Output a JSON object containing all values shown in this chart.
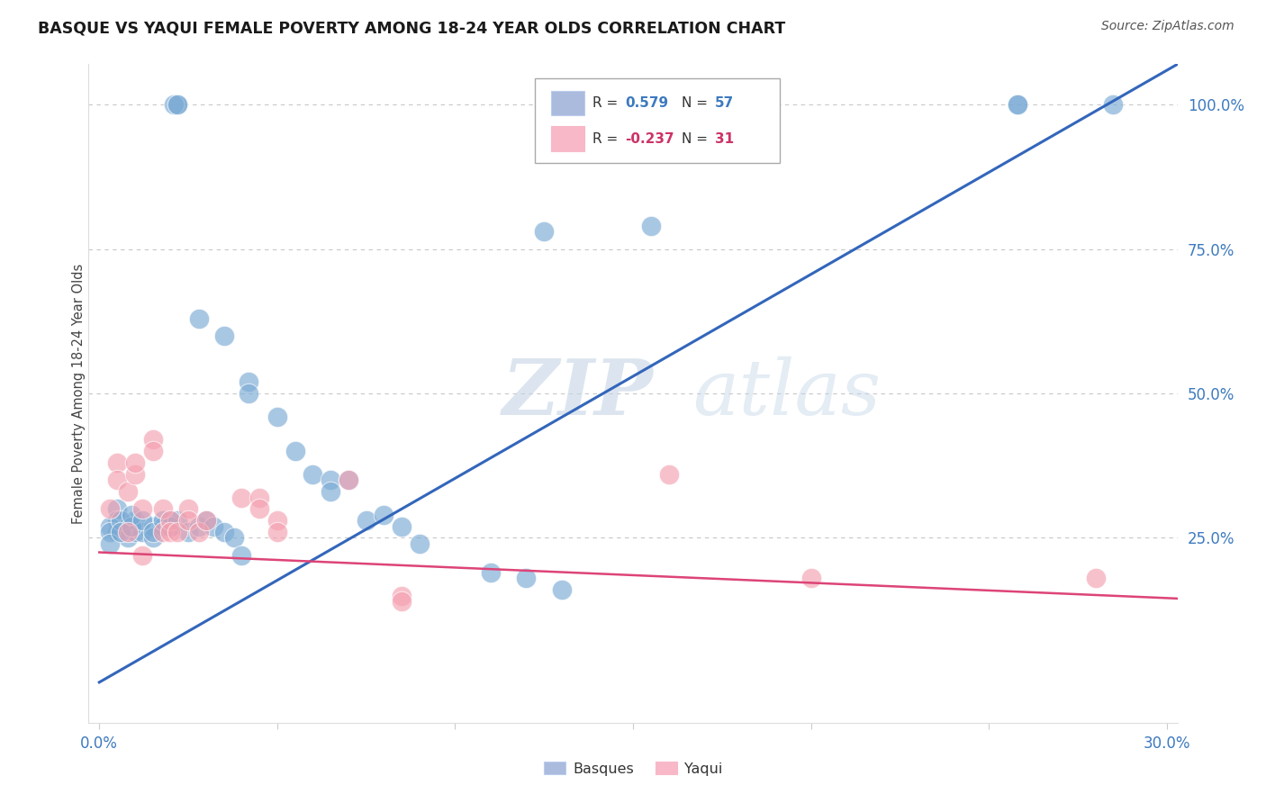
{
  "title": "BASQUE VS YAQUI FEMALE POVERTY AMONG 18-24 YEAR OLDS CORRELATION CHART",
  "source": "Source: ZipAtlas.com",
  "ylabel": "Female Poverty Among 18-24 Year Olds",
  "xlim": [
    -0.003,
    0.303
  ],
  "ylim": [
    -0.07,
    1.07
  ],
  "xtick_vals": [
    0.0,
    0.05,
    0.1,
    0.15,
    0.2,
    0.25,
    0.3
  ],
  "xticklabels": [
    "0.0%",
    "",
    "",
    "",
    "",
    "",
    "30.0%"
  ],
  "ytick_vals": [
    0.25,
    0.5,
    0.75,
    1.0
  ],
  "yticklabels": [
    "25.0%",
    "50.0%",
    "75.0%",
    "100.0%"
  ],
  "blue_scatter_color": "#7aaad4",
  "pink_scatter_color": "#f4a0b0",
  "blue_line_color": "#3366bb",
  "pink_line_color": "#dd4477",
  "tick_label_color": "#3d7abf",
  "grid_color": "#c8c8c8",
  "legend_blue_r": "0.579",
  "legend_blue_n": "57",
  "legend_pink_r": "-0.237",
  "legend_pink_n": "31",
  "legend_label_blue": "Basques",
  "legend_label_pink": "Yaqui",
  "watermark_zip": "ZIP",
  "watermark_atlas": "atlas",
  "bg_color": "#ffffff",
  "basque_x": [
    0.022,
    0.021,
    0.022,
    0.125,
    0.155,
    0.028,
    0.035,
    0.042,
    0.042,
    0.05,
    0.055,
    0.06,
    0.065,
    0.065,
    0.07,
    0.075,
    0.08,
    0.085,
    0.005,
    0.005,
    0.005,
    0.008,
    0.008,
    0.01,
    0.01,
    0.012,
    0.015,
    0.015,
    0.018,
    0.02,
    0.02,
    0.258,
    0.258,
    0.285,
    0.09,
    0.11,
    0.12,
    0.13,
    0.003,
    0.003,
    0.003,
    0.006,
    0.006,
    0.009,
    0.009,
    0.012,
    0.015,
    0.018,
    0.02,
    0.022,
    0.025,
    0.028,
    0.03,
    0.032,
    0.035,
    0.038,
    0.04
  ],
  "basque_y": [
    1.0,
    1.0,
    1.0,
    0.78,
    0.79,
    0.63,
    0.6,
    0.52,
    0.5,
    0.46,
    0.4,
    0.36,
    0.35,
    0.33,
    0.35,
    0.28,
    0.29,
    0.27,
    0.3,
    0.28,
    0.26,
    0.27,
    0.25,
    0.26,
    0.28,
    0.26,
    0.27,
    0.25,
    0.27,
    0.27,
    0.28,
    1.0,
    1.0,
    1.0,
    0.24,
    0.19,
    0.18,
    0.16,
    0.27,
    0.26,
    0.24,
    0.28,
    0.26,
    0.27,
    0.29,
    0.28,
    0.26,
    0.28,
    0.27,
    0.28,
    0.26,
    0.27,
    0.28,
    0.27,
    0.26,
    0.25,
    0.22
  ],
  "yaqui_x": [
    0.005,
    0.005,
    0.008,
    0.01,
    0.01,
    0.012,
    0.015,
    0.015,
    0.018,
    0.018,
    0.02,
    0.02,
    0.022,
    0.025,
    0.025,
    0.028,
    0.03,
    0.04,
    0.045,
    0.045,
    0.05,
    0.05,
    0.07,
    0.085,
    0.085,
    0.16,
    0.2,
    0.28,
    0.003,
    0.008,
    0.012
  ],
  "yaqui_y": [
    0.38,
    0.35,
    0.33,
    0.36,
    0.38,
    0.3,
    0.42,
    0.4,
    0.3,
    0.26,
    0.28,
    0.26,
    0.26,
    0.3,
    0.28,
    0.26,
    0.28,
    0.32,
    0.32,
    0.3,
    0.28,
    0.26,
    0.35,
    0.15,
    0.14,
    0.36,
    0.18,
    0.18,
    0.3,
    0.26,
    0.22
  ],
  "blue_line_x": [
    0.0,
    0.303
  ],
  "blue_line_y": [
    0.0,
    1.07
  ],
  "pink_line_x": [
    0.0,
    0.303
  ],
  "pink_line_y": [
    0.225,
    0.145
  ]
}
